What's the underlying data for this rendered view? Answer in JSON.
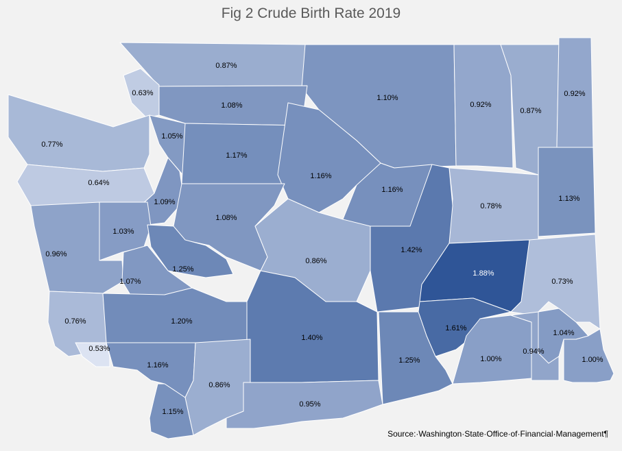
{
  "title": "Fig 2 Crude Birth Rate 2019",
  "source": "Source:·Washington·State·Office·of·Financial·Management¶",
  "colors": {
    "background": "#f2f2f2",
    "border": "#ffffff",
    "text": "#000000",
    "text_dark_fill": "#ffffff",
    "scale_low": "#dce3f2",
    "scale_high": "#2f5597"
  },
  "counties": [
    {
      "label": "0.87%",
      "value": 0.87
    },
    {
      "label": "0.63%",
      "value": 0.63
    },
    {
      "label": "1.10%",
      "value": 1.1
    },
    {
      "label": "0.92%",
      "value": 0.92
    },
    {
      "label": "0.87%",
      "value": 0.87
    },
    {
      "label": "0.92%",
      "value": 0.92
    },
    {
      "label": "1.08%",
      "value": 1.08
    },
    {
      "label": "1.05%",
      "value": 1.05
    },
    {
      "label": "0.77%",
      "value": 0.77
    },
    {
      "label": "1.17%",
      "value": 1.17
    },
    {
      "label": "1.16%",
      "value": 1.16
    },
    {
      "label": "0.64%",
      "value": 0.64
    },
    {
      "label": "1.16%",
      "value": 1.16
    },
    {
      "label": "1.09%",
      "value": 1.09
    },
    {
      "label": "0.78%",
      "value": 0.78
    },
    {
      "label": "1.13%",
      "value": 1.13
    },
    {
      "label": "1.03%",
      "value": 1.03
    },
    {
      "label": "1.08%",
      "value": 1.08
    },
    {
      "label": "1.42%",
      "value": 1.42
    },
    {
      "label": "0.96%",
      "value": 0.96
    },
    {
      "label": "1.25%",
      "value": 1.25
    },
    {
      "label": "0.86%",
      "value": 0.86
    },
    {
      "label": "1.07%",
      "value": 1.07
    },
    {
      "label": "1.88%",
      "value": 1.88
    },
    {
      "label": "0.73%",
      "value": 0.73
    },
    {
      "label": "0.76%",
      "value": 0.76
    },
    {
      "label": "1.20%",
      "value": 1.2
    },
    {
      "label": "1.40%",
      "value": 1.4
    },
    {
      "label": "1.61%",
      "value": 1.61
    },
    {
      "label": "1.04%",
      "value": 1.04
    },
    {
      "label": "0.53%",
      "value": 0.53
    },
    {
      "label": "1.16%",
      "value": 1.16
    },
    {
      "label": "1.25%",
      "value": 1.25
    },
    {
      "label": "1.00%",
      "value": 1.0
    },
    {
      "label": "0.94%",
      "value": 0.94
    },
    {
      "label": "1.00%",
      "value": 1.0
    },
    {
      "label": "0.86%",
      "value": 0.86
    },
    {
      "label": "1.15%",
      "value": 1.15
    },
    {
      "label": "0.95%",
      "value": 0.95
    }
  ]
}
